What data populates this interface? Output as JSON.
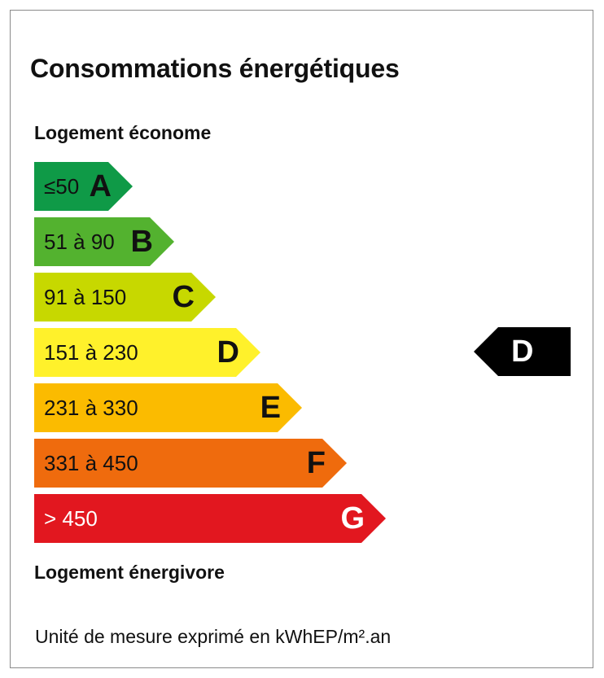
{
  "title": "Consommations énergétiques",
  "label_top": "Logement économe",
  "label_bottom": "Logement énergivore",
  "unit_note": "Unité de mesure exprimé en kWhEP/m².an",
  "classes": [
    {
      "letter": "A",
      "range": "≤50",
      "color": "#0f9a47",
      "text_color": "#111111"
    },
    {
      "letter": "B",
      "range": "51 à 90",
      "color": "#53b22f",
      "text_color": "#111111"
    },
    {
      "letter": "C",
      "range": "91 à 150",
      "color": "#c7d800",
      "text_color": "#111111"
    },
    {
      "letter": "D",
      "range": "151 à 230",
      "color": "#fff12b",
      "text_color": "#111111"
    },
    {
      "letter": "E",
      "range": "231 à 330",
      "color": "#fbbb00",
      "text_color": "#111111"
    },
    {
      "letter": "F",
      "range": "331 à 450",
      "color": "#ef6b0d",
      "text_color": "#111111"
    },
    {
      "letter": "G",
      "range": "> 450",
      "color": "#e2171f",
      "text_color": "#ffffff"
    }
  ],
  "current": {
    "letter": "D",
    "color": "#000000"
  }
}
